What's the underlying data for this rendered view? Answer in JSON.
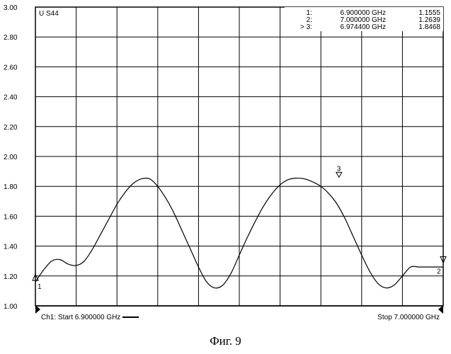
{
  "chart_data": {
    "type": "line",
    "trace_label": "U S44",
    "ylim": [
      1.0,
      3.0
    ],
    "y_ticks": [
      "3.00",
      "2.80",
      "2.60",
      "2.40",
      "2.20",
      "2.00",
      "1.80",
      "1.60",
      "1.40",
      "1.20",
      "1.00"
    ],
    "xlim": [
      6.9,
      7.0
    ],
    "x_grid_divisions": 10,
    "grid": true,
    "start_label": "Ch1: Start  6.900000 GHz",
    "stop_label": "Stop  7.000000 GHz",
    "markers": [
      {
        "label": "1:",
        "freq": "6.900000 GHz",
        "value": "1.1555",
        "x": 6.9,
        "y": 1.1555,
        "flag": "1"
      },
      {
        "label": "2:",
        "freq": "7.000000 GHz",
        "value": "1.2639",
        "x": 7.0,
        "y": 1.2639,
        "flag": "2"
      },
      {
        "label": "> 3:",
        "freq": "6.974400 GHz",
        "value": "1.8468",
        "x": 6.97444,
        "y": 1.8468,
        "flag": "3"
      }
    ],
    "x": [
      6.9,
      6.902,
      6.904,
      6.906,
      6.908,
      6.91,
      6.912,
      6.914,
      6.916,
      6.918,
      6.92,
      6.922,
      6.924,
      6.926,
      6.928,
      6.93,
      6.932,
      6.934,
      6.936,
      6.938,
      6.94,
      6.942,
      6.944,
      6.946,
      6.948,
      6.95,
      6.952,
      6.954,
      6.956,
      6.958,
      6.96,
      6.962,
      6.964,
      6.966,
      6.968,
      6.97,
      6.972,
      6.974,
      6.976,
      6.978,
      6.98,
      6.982,
      6.984,
      6.986,
      6.988,
      6.99,
      6.992,
      6.994,
      6.996,
      6.998,
      7.0
    ],
    "y": [
      1.16,
      1.24,
      1.3,
      1.31,
      1.28,
      1.27,
      1.3,
      1.38,
      1.48,
      1.58,
      1.68,
      1.76,
      1.82,
      1.85,
      1.85,
      1.8,
      1.72,
      1.62,
      1.5,
      1.38,
      1.26,
      1.16,
      1.12,
      1.14,
      1.22,
      1.34,
      1.46,
      1.57,
      1.67,
      1.75,
      1.81,
      1.845,
      1.855,
      1.85,
      1.83,
      1.8,
      1.75,
      1.68,
      1.58,
      1.46,
      1.34,
      1.23,
      1.15,
      1.12,
      1.14,
      1.2,
      1.26,
      1.26,
      1.26,
      1.26,
      1.26
    ]
  },
  "caption": "Фиг. 9"
}
